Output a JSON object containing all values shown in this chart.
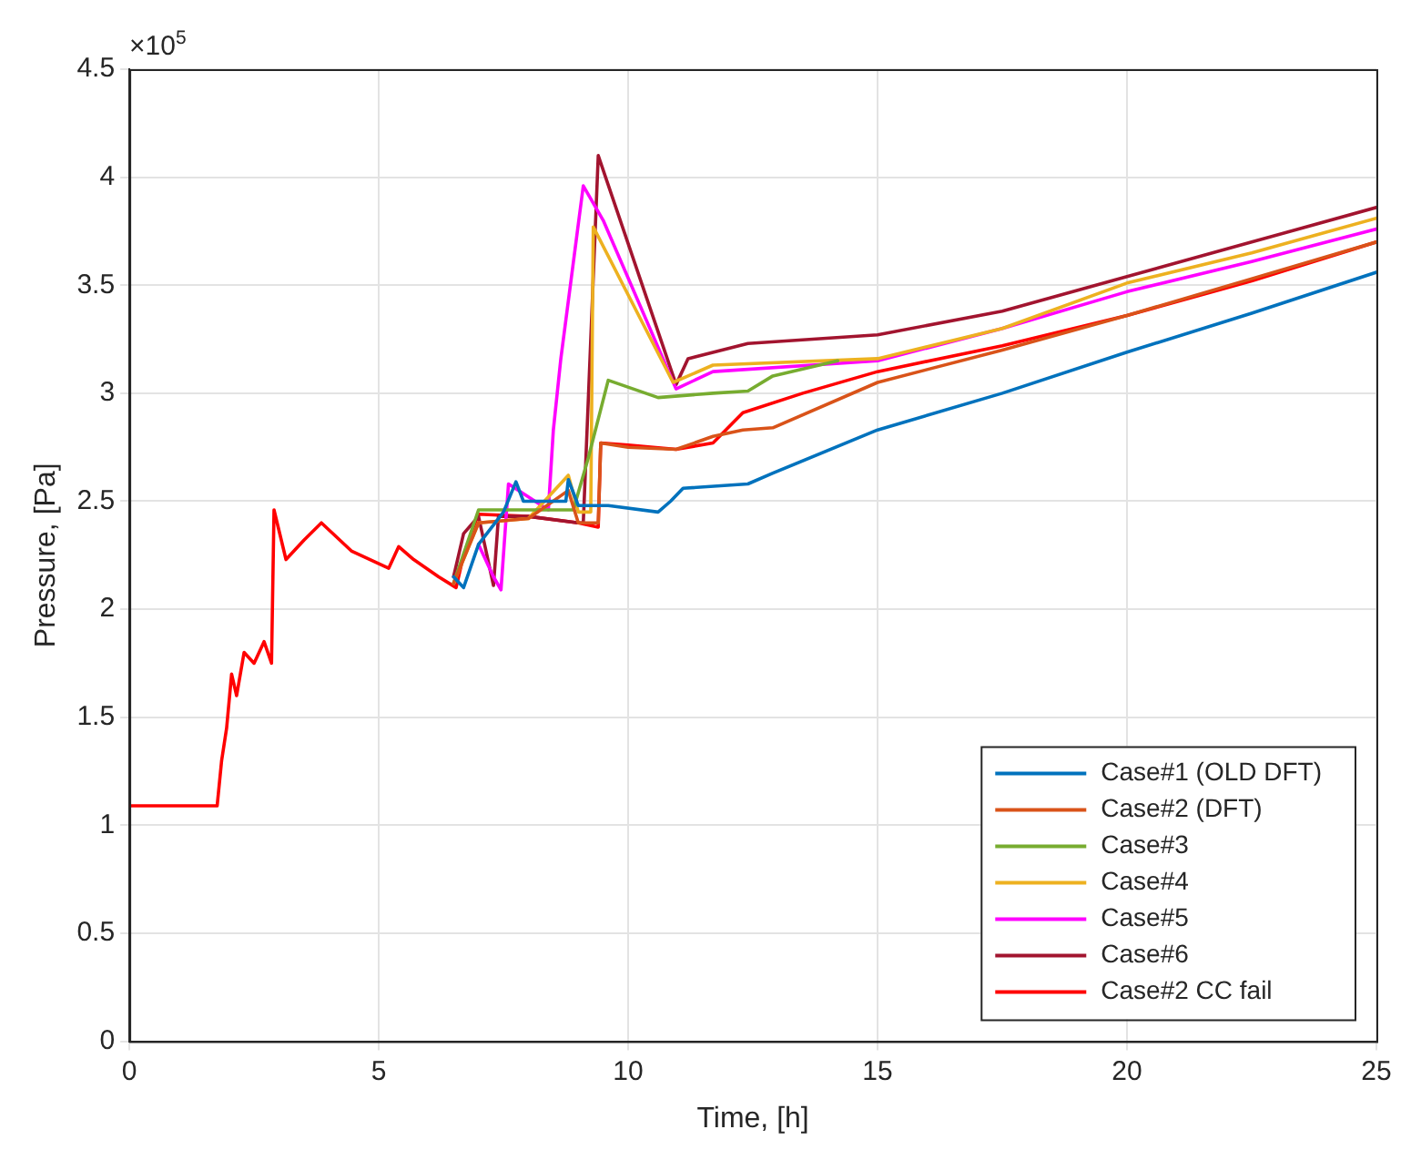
{
  "chart_data": {
    "type": "line",
    "xlabel": "Time, [h]",
    "ylabel": "Pressure, [Pa]",
    "annotations": [
      "×10$^{5}$"
    ],
    "xlim": [
      0,
      25
    ],
    "xticks": [
      0,
      5,
      10,
      15,
      20,
      25
    ],
    "ylim": [
      0,
      4.5
    ],
    "yticks": [
      0,
      0.5,
      1,
      1.5,
      2,
      2.5,
      3,
      3.5,
      4,
      4.5
    ],
    "grid": true,
    "legend": "bottom right",
    "marker": "none",
    "line_style": "solid",
    "series": [
      {
        "name": "Case#1 (OLD DFT)",
        "color": "#0072bd",
        "x": [
          6.5,
          6.7,
          7.0,
          7.5,
          7.75,
          7.9,
          8.75,
          8.8,
          9.0,
          9.6,
          10.6,
          10.85,
          11.1,
          12.4,
          12.9,
          15,
          17.5,
          20,
          22.5,
          25
        ],
        "values": [
          2.15,
          2.1,
          2.3,
          2.45,
          2.59,
          2.5,
          2.5,
          2.6,
          2.48,
          2.48,
          2.45,
          2.5,
          2.56,
          2.58,
          2.63,
          2.83,
          3.0,
          3.19,
          3.37,
          3.56
        ]
      },
      {
        "name": "Case#2 (DFT)",
        "color": "#d95319",
        "x": [
          6.5,
          7.0,
          8.0,
          8.8,
          9.0,
          9.4,
          9.45,
          10.0,
          10.96,
          11.7,
          12.3,
          12.9,
          15,
          17.5,
          20,
          22.5,
          25
        ],
        "values": [
          2.12,
          2.4,
          2.42,
          2.55,
          2.4,
          2.4,
          2.77,
          2.75,
          2.74,
          2.8,
          2.83,
          2.84,
          3.05,
          3.2,
          3.36,
          3.53,
          3.7
        ]
      },
      {
        "name": "Case#3",
        "color": "#77ac30",
        "x": [
          6.5,
          7.0,
          8.0,
          8.9,
          9.2,
          9.6,
          10.6,
          11.7,
          12.4,
          12.9,
          14.2
        ],
        "values": [
          2.12,
          2.46,
          2.46,
          2.46,
          2.7,
          3.06,
          2.98,
          3.0,
          3.01,
          3.08,
          3.15
        ]
      },
      {
        "name": "Case#4",
        "color": "#edb120",
        "x": [
          6.5,
          7.0,
          8.0,
          8.8,
          9.0,
          9.25,
          9.3,
          10.9,
          11.7,
          15,
          17.5,
          20,
          22.5,
          25
        ],
        "values": [
          2.12,
          2.4,
          2.42,
          2.62,
          2.45,
          2.45,
          3.77,
          3.05,
          3.13,
          3.16,
          3.3,
          3.51,
          3.65,
          3.81
        ]
      },
      {
        "name": "Case#5",
        "color": "#ff00ff",
        "x": [
          7.0,
          7.3,
          7.45,
          7.6,
          8.4,
          8.5,
          8.65,
          9.1,
          9.5,
          10.96,
          11.7,
          15,
          17.5,
          20,
          22.5,
          25
        ],
        "values": [
          2.3,
          2.15,
          2.09,
          2.58,
          2.46,
          2.83,
          3.16,
          3.96,
          3.8,
          3.02,
          3.1,
          3.15,
          3.3,
          3.47,
          3.61,
          3.76
        ]
      },
      {
        "name": "Case#6",
        "color": "#a2142f",
        "x": [
          6.5,
          6.7,
          7.0,
          7.3,
          7.4,
          8.0,
          9.0,
          9.1,
          9.4,
          10.96,
          11.2,
          12.4,
          15,
          17.5,
          20,
          22.5,
          25
        ],
        "values": [
          2.15,
          2.35,
          2.43,
          2.11,
          2.43,
          2.43,
          2.4,
          2.4,
          4.1,
          3.04,
          3.16,
          3.23,
          3.27,
          3.38,
          3.54,
          3.7,
          3.86
        ]
      },
      {
        "name": "Case#2 CC fail",
        "color": "#ff0000",
        "x": [
          0,
          1.76,
          1.85,
          1.95,
          2.05,
          2.15,
          2.3,
          2.5,
          2.7,
          2.85,
          2.9,
          3.14,
          3.5,
          3.85,
          4.45,
          5.2,
          5.4,
          5.7,
          6.2,
          6.55,
          6.7,
          7.0,
          8.0,
          9.0,
          9.4,
          9.45,
          10.0,
          10.96,
          11.7,
          12.3,
          13.5,
          15,
          17.5,
          20,
          22.5,
          25
        ],
        "values": [
          1.09,
          1.09,
          1.3,
          1.45,
          1.7,
          1.6,
          1.8,
          1.75,
          1.85,
          1.75,
          2.46,
          2.23,
          2.32,
          2.4,
          2.27,
          2.19,
          2.29,
          2.23,
          2.15,
          2.1,
          2.25,
          2.44,
          2.43,
          2.4,
          2.38,
          2.77,
          2.76,
          2.74,
          2.77,
          2.91,
          3.0,
          3.1,
          3.22,
          3.36,
          3.52,
          3.7
        ]
      }
    ]
  }
}
